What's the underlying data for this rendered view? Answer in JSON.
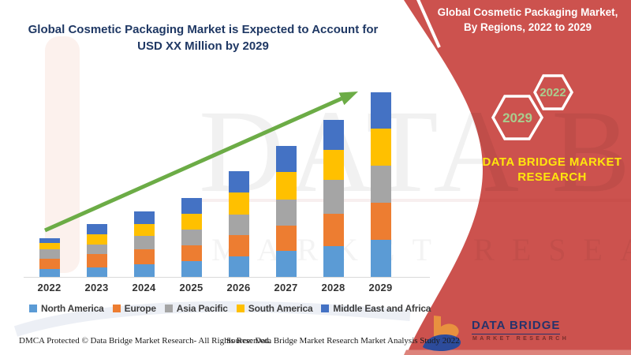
{
  "header": {
    "title_line1": "Global Cosmetic Packaging Market is Expected to Account for",
    "title_line2": "USD XX Million by 2029",
    "title_color": "#1F3864"
  },
  "banner": {
    "line1": "Global Cosmetic Packaging Market,",
    "line2": "By Regions, 2022 to 2029",
    "bg_color": "#CC524E",
    "bottom_strip_color": "#DD837B"
  },
  "hexagons": [
    {
      "label": "2029",
      "text_color": "#A9CD8E"
    },
    {
      "label": "2022",
      "text_color": "#A9CD8E"
    }
  ],
  "brand": {
    "line1": "DATA BRIDGE MARKET",
    "line2": "RESEARCH",
    "text_color": "#FFE60C"
  },
  "chart_data": {
    "type": "bar",
    "stacked": true,
    "title": "Global Cosmetic Packaging Market is Expected to Account for USD XX Million by 2029",
    "units": "USD XX Million (values not labeled in source; series values are relative units estimated from bar heights)",
    "categories": [
      "2022",
      "2023",
      "2024",
      "2025",
      "2026",
      "2027",
      "2028",
      "2029"
    ],
    "series": [
      {
        "name": "North America",
        "color": "#5B9BD5",
        "values": [
          10,
          12,
          16,
          20,
          26,
          33,
          39,
          47
        ]
      },
      {
        "name": "Europe",
        "color": "#ED7D31",
        "values": [
          13,
          17,
          19,
          20,
          27,
          32,
          41,
          47
        ]
      },
      {
        "name": "Asia Pacific",
        "color": "#A5A5A5",
        "values": [
          12,
          12,
          17,
          20,
          26,
          33,
          43,
          47
        ]
      },
      {
        "name": "South America",
        "color": "#FFC000",
        "values": [
          8,
          13,
          15,
          20,
          28,
          35,
          38,
          47
        ]
      },
      {
        "name": "Middle East and Africa",
        "color": "#4472C4",
        "values": [
          6,
          13,
          16,
          20,
          27,
          33,
          38,
          46
        ]
      }
    ],
    "totals": [
      49,
      67,
      83,
      100,
      133,
      167,
      199,
      234
    ],
    "xlabel": "",
    "ylabel": "",
    "grid": false,
    "legend_position": "bottom",
    "trend_arrow": true,
    "arrow_color": "#6CAC46"
  },
  "footer": {
    "dmca": "DMCA Protected © Data Bridge Market Research- All Rights Reserved.",
    "source": "Source: Data Bridge Market Research Market Analysis Study 2022"
  },
  "logo": {
    "title": "DATA BRIDGE",
    "subtitle": "MARKET RESEARCH"
  },
  "watermark": {
    "line1": "DATA BRIDGE",
    "line2": "MARKET RESEARCH"
  }
}
